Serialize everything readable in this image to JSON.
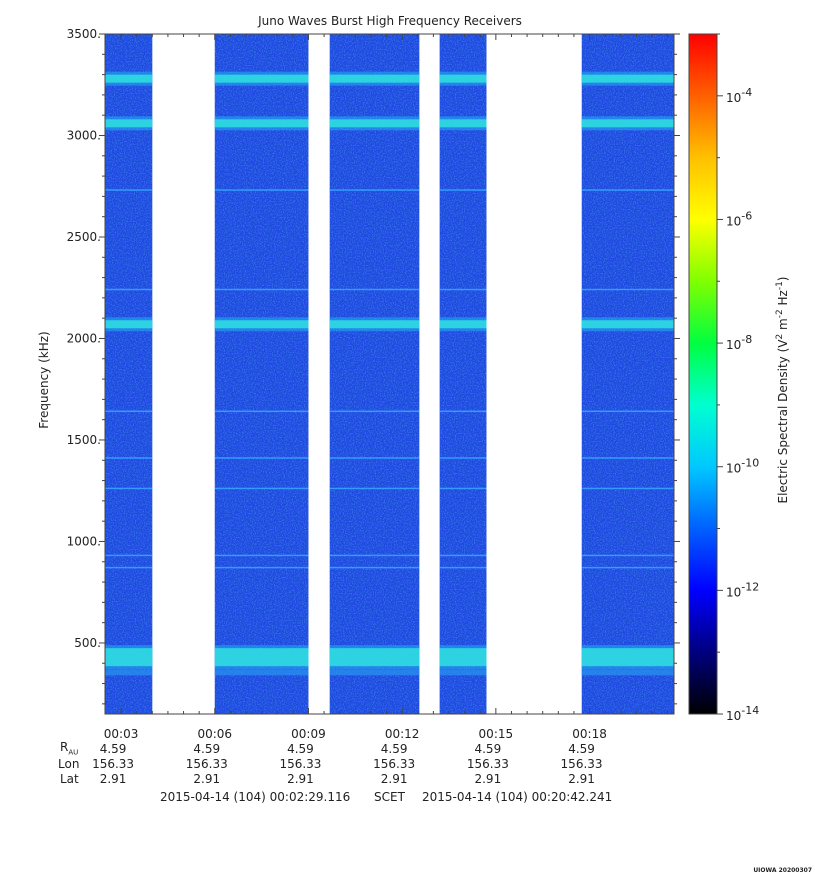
{
  "chart_data": {
    "type": "heatmap",
    "title": "Juno Waves Burst High Frequency Receivers",
    "ylabel": "Frequency (kHz)",
    "y_ticks": [
      "3500.",
      "3000.",
      "2500.",
      "2000.",
      "1500.",
      "1000.",
      "500."
    ],
    "y_tick_values": [
      3500,
      3000,
      2500,
      2000,
      1500,
      1000,
      500
    ],
    "ylim": [
      150,
      3500
    ],
    "x_ticks": [
      "00:03",
      "00:06",
      "00:09",
      "00:12",
      "00:15",
      "00:18"
    ],
    "x_tick_minutes": [
      3,
      6,
      9,
      12,
      15,
      18
    ],
    "xlim_minutes": [
      2.4853,
      20.704
    ],
    "data_segments_minutes": [
      [
        2.49,
        4.0
      ],
      [
        6.0,
        9.0
      ],
      [
        9.68,
        12.55
      ],
      [
        13.2,
        14.7
      ],
      [
        17.75,
        20.7
      ]
    ],
    "band_freqs_khz": [
      3280,
      3060,
      2070,
      430
    ],
    "line_freqs_khz": [
      2730,
      2240,
      1640,
      1410,
      1260,
      930,
      870
    ],
    "colorbar": {
      "label_prefix": "Electric Spectral Density (V",
      "label_mid": " m",
      "label_mid2": " Hz",
      "label_end": ")",
      "sup1": "2",
      "sup2": "-2",
      "sup3": "-1",
      "tick_bases": [
        "10",
        "10",
        "10",
        "10",
        "10",
        "10"
      ],
      "tick_exps": [
        "-4",
        "-6",
        "-8",
        "-10",
        "-12",
        "-14"
      ],
      "tick_log_values": [
        -4,
        -6,
        -8,
        -10,
        -12,
        -14
      ],
      "range_log": [
        -14,
        -3
      ],
      "colors": [
        "#000000",
        "#00007f",
        "#0000ff",
        "#0060ff",
        "#00c8ff",
        "#00ffd0",
        "#00ff40",
        "#80ff00",
        "#ffff00",
        "#ffc000",
        "#ff6000",
        "#ff0000"
      ]
    },
    "ephemeris": {
      "row_labels": {
        "r": "R",
        "r_sub": "AU",
        "lon": "Lon",
        "lat": "Lat"
      },
      "r_values": [
        "4.59",
        "4.59",
        "4.59",
        "4.59",
        "4.59",
        "4.59"
      ],
      "lon_values": [
        "156.33",
        "156.33",
        "156.33",
        "156.33",
        "156.33",
        "156.33"
      ],
      "lat_values": [
        "2.91",
        "2.91",
        "2.91",
        "2.91",
        "2.91",
        "2.91"
      ]
    },
    "time_range": {
      "start": "2015-04-14 (104) 00:02:29.116",
      "label": "SCET",
      "end": "2015-04-14 (104) 00:20:42.241"
    },
    "stamp": "UIOWA 20200307"
  }
}
